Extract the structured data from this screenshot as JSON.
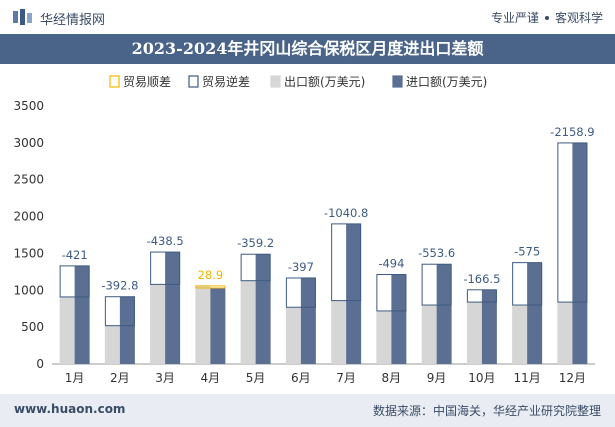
{
  "header": {
    "brand": "华经情报网",
    "tags": [
      "专业严谨",
      "客观科学"
    ]
  },
  "chart_data": {
    "type": "bar",
    "title": "2023-2024年井冈山综合保税区月度进出口差额",
    "categories": [
      "1月",
      "2月",
      "3月",
      "4月",
      "5月",
      "6月",
      "7月",
      "8月",
      "9月",
      "10月",
      "11月",
      "12月"
    ],
    "series": [
      {
        "name": "出口额(万美元)",
        "color": "#d6d6d6",
        "values": [
          910,
          520,
          1080,
          1060,
          1130,
          770,
          860,
          720,
          800,
          840,
          800,
          840
        ]
      },
      {
        "name": "进口额(万美元)",
        "color": "#5b6f93",
        "values": [
          1331,
          912.8,
          1518.5,
          1031.1,
          1489.2,
          1167,
          1900.8,
          1214,
          1353.6,
          1006.5,
          1375,
          2998.9
        ]
      }
    ],
    "balance": {
      "surplus_name": "贸易顺差",
      "deficit_name": "贸易逆差",
      "surplus_color": "#f2b600",
      "deficit_color": "#3d5b82",
      "values": [
        -421,
        -392.8,
        -438.5,
        28.9,
        -359.2,
        -397,
        -1040.8,
        -494,
        -553.6,
        -166.5,
        -575,
        -2158.9
      ]
    },
    "ylim": [
      0,
      3500
    ],
    "yticks": [
      0,
      500,
      1000,
      1500,
      2000,
      2500,
      3000,
      3500
    ],
    "legend_position": "top"
  },
  "footer": {
    "website": "www.huaon.com",
    "source": "数据来源：中国海关，华经产业研究院整理"
  }
}
